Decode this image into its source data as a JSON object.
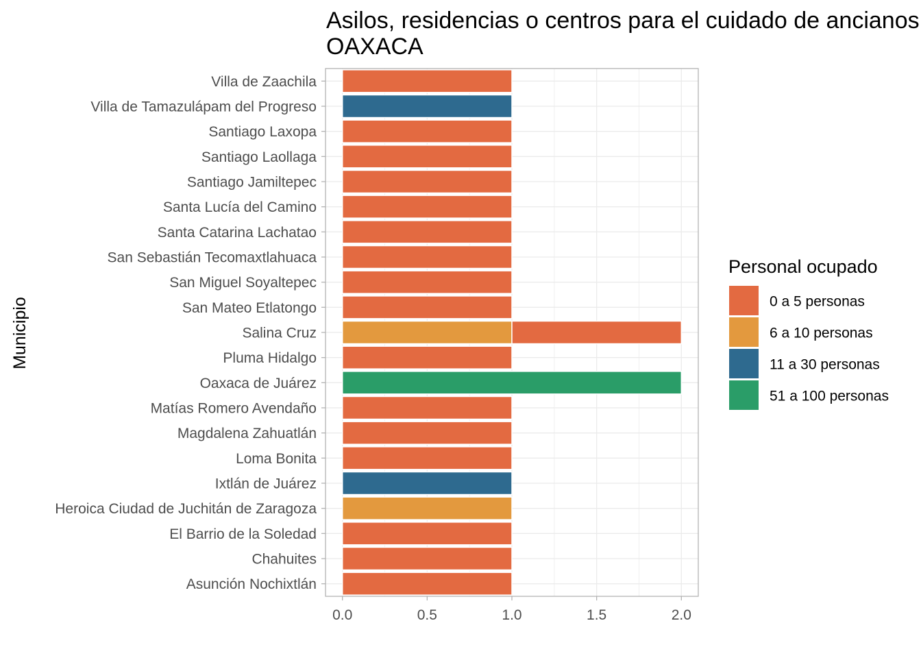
{
  "chart_data": {
    "type": "bar",
    "orientation": "horizontal",
    "stacked": true,
    "title": "Asilos, residencias o centros para el cuidado de ancianos",
    "subtitle": "OAXACA",
    "ylabel": "Municipio",
    "xlim": [
      0,
      2.1
    ],
    "x_ticks": [
      "0.0",
      "0.5",
      "1.0",
      "1.5",
      "2.0"
    ],
    "grid": true,
    "legend": {
      "title": "Personal ocupado",
      "position": "right",
      "entries": [
        {
          "key": "0a5",
          "label": "0 a 5 personas",
          "color": "#E36A41"
        },
        {
          "key": "6a10",
          "label": "6 a 10 personas",
          "color": "#E3993E"
        },
        {
          "key": "11a30",
          "label": "11 a 30 personas",
          "color": "#2E6A8F"
        },
        {
          "key": "51a100",
          "label": "51 a 100 personas",
          "color": "#2A9D68"
        }
      ]
    },
    "categories": [
      "Villa de Zaachila",
      "Villa de Tamazulápam del Progreso",
      "Santiago Laxopa",
      "Santiago Laollaga",
      "Santiago Jamiltepec",
      "Santa Lucía del Camino",
      "Santa Catarina Lachatao",
      "San Sebastián Tecomaxtlahuaca",
      "San Miguel Soyaltepec",
      "San Mateo Etlatongo",
      "Salina Cruz",
      "Pluma Hidalgo",
      "Oaxaca de Juárez",
      "Matías Romero Avendaño",
      "Magdalena Zahuatlán",
      "Loma Bonita",
      "Ixtlán de Juárez",
      "Heroica Ciudad de Juchitán de Zaragoza",
      "El Barrio de la Soledad",
      "Chahuites",
      "Asunción Nochixtlán"
    ],
    "series": [
      {
        "key": "51a100",
        "values": [
          0,
          0,
          0,
          0,
          0,
          0,
          0,
          0,
          0,
          0,
          0,
          0,
          2,
          0,
          0,
          0,
          0,
          0,
          0,
          0,
          0
        ]
      },
      {
        "key": "11a30",
        "values": [
          0,
          1,
          0,
          0,
          0,
          0,
          0,
          0,
          0,
          0,
          0,
          0,
          0,
          0,
          0,
          0,
          1,
          0,
          0,
          0,
          0
        ]
      },
      {
        "key": "6a10",
        "values": [
          0,
          0,
          0,
          0,
          0,
          0,
          0,
          0,
          0,
          0,
          1,
          0,
          0,
          0,
          0,
          0,
          0,
          1,
          0,
          0,
          0
        ]
      },
      {
        "key": "0a5",
        "values": [
          1,
          0,
          1,
          1,
          1,
          1,
          1,
          1,
          1,
          1,
          1,
          1,
          0,
          1,
          1,
          1,
          0,
          0,
          1,
          1,
          1
        ]
      }
    ]
  }
}
